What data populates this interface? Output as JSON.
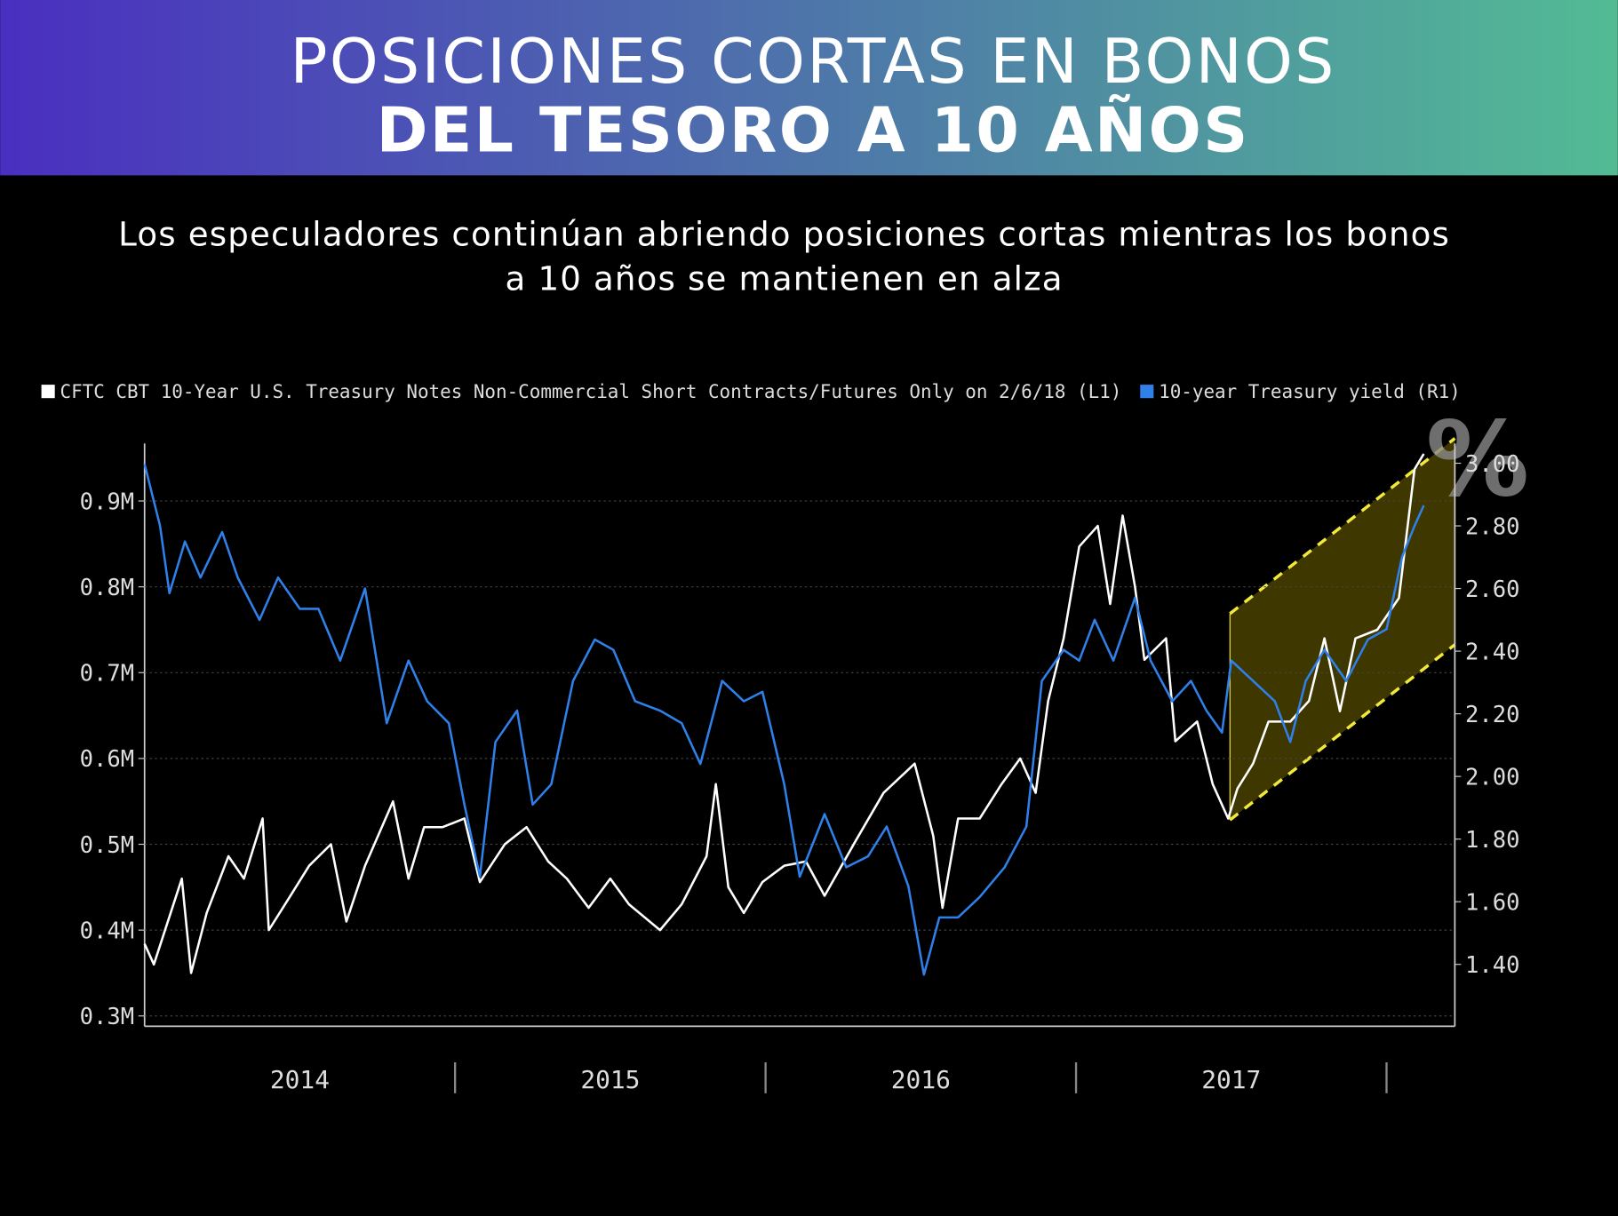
{
  "chart_data": {
    "type": "line",
    "title": [
      "POSICIONES CORTAS EN BONOS",
      "DEL TESORO A 10 AÑOS"
    ],
    "subtitle": [
      "Los especuladores continúan abriendo posiciones cortas mientras los bonos",
      "a 10 años se mantienen en alza"
    ],
    "annotation": "%",
    "xlim": [
      2014,
      2018.22
    ],
    "xticks": [
      {
        "value": 2014.5,
        "label": "2014"
      },
      {
        "value": 2015.5,
        "label": "2015"
      },
      {
        "value": 2016.5,
        "label": "2016"
      },
      {
        "value": 2017.5,
        "label": "2017"
      }
    ],
    "ylim": [
      288000,
      967000
    ],
    "yticks": [
      {
        "value": 300000,
        "label": "0.3M"
      },
      {
        "value": 400000,
        "label": "0.4M"
      },
      {
        "value": 500000,
        "label": "0.5M"
      },
      {
        "value": 600000,
        "label": "0.6M"
      },
      {
        "value": 700000,
        "label": "0.7M"
      },
      {
        "value": 800000,
        "label": "0.8M"
      },
      {
        "value": 900000,
        "label": "0.9M"
      }
    ],
    "y2lim": [
      1.2025,
      3.063
    ],
    "y2ticks": [
      {
        "value": 1.4,
        "label": "1.40"
      },
      {
        "value": 1.6,
        "label": "1.60"
      },
      {
        "value": 1.8,
        "label": "1.80"
      },
      {
        "value": 2.0,
        "label": "2.00"
      },
      {
        "value": 2.2,
        "label": "2.20"
      },
      {
        "value": 2.4,
        "label": "2.40"
      },
      {
        "value": 2.6,
        "label": "2.60"
      },
      {
        "value": 2.8,
        "label": "2.80"
      },
      {
        "value": 3.0,
        "label": "3.00"
      }
    ],
    "grid": true,
    "series": [
      {
        "name": "CFTC CBT 10-Year U.S. Treasury Notes Non-Commercial Short Contracts/Futures Only on 2/6/18 (L1)",
        "color": "#ffffff",
        "x": [
          2014.0,
          2014.03,
          2014.12,
          2014.15,
          2014.2,
          2014.27,
          2014.32,
          2014.38,
          2014.4,
          2014.47,
          2014.53,
          2014.6,
          2014.65,
          2014.71,
          2014.8,
          2014.85,
          2014.9,
          2014.96,
          2015.03,
          2015.08,
          2015.16,
          2015.23,
          2015.3,
          2015.36,
          2015.43,
          2015.5,
          2015.56,
          2015.66,
          2015.73,
          2015.81,
          2015.84,
          2015.88,
          2015.93,
          2015.99,
          2016.06,
          2016.13,
          2016.19,
          2016.29,
          2016.38,
          2016.48,
          2016.54,
          2016.57,
          2016.62,
          2016.69,
          2016.76,
          2016.82,
          2016.87,
          2016.91,
          2016.96,
          2017.01,
          2017.07,
          2017.11,
          2017.15,
          2017.19,
          2017.22,
          2017.29,
          2017.32,
          2017.39,
          2017.44,
          2017.49,
          2017.52,
          2017.57,
          2017.62,
          2017.69,
          2017.75,
          2017.8,
          2017.85,
          2017.9,
          2017.97,
          2018.04,
          2018.09,
          2018.12
        ],
        "values": [
          384000,
          360000,
          460000,
          350000,
          420000,
          486000,
          460000,
          530000,
          400000,
          440000,
          475000,
          500000,
          410000,
          475000,
          550000,
          460000,
          520000,
          520000,
          530000,
          456000,
          500000,
          520000,
          480000,
          460000,
          426000,
          460000,
          430000,
          400000,
          430000,
          486000,
          570000,
          450000,
          420000,
          456000,
          475000,
          480000,
          440000,
          504000,
          560000,
          594000,
          510000,
          426000,
          530000,
          530000,
          570000,
          600000,
          560000,
          667000,
          740000,
          847000,
          871000,
          780000,
          883000,
          800000,
          715000,
          740000,
          620000,
          643000,
          570000,
          530000,
          565000,
          594000,
          643000,
          643000,
          667000,
          740000,
          655000,
          740000,
          750000,
          787000,
          937000,
          955000
        ]
      },
      {
        "name": "10-year Treasury yield (R1)",
        "color": "#2f80e8",
        "axis": "y2",
        "x": [
          2014.0,
          2014.05,
          2014.08,
          2014.13,
          2014.18,
          2014.25,
          2014.3,
          2014.37,
          2014.43,
          2014.5,
          2014.56,
          2014.63,
          2014.71,
          2014.78,
          2014.85,
          2014.91,
          2014.98,
          2015.03,
          2015.08,
          2015.13,
          2015.2,
          2015.25,
          2015.31,
          2015.38,
          2015.45,
          2015.51,
          2015.58,
          2015.66,
          2015.73,
          2015.79,
          2015.86,
          2015.93,
          2015.99,
          2016.06,
          2016.11,
          2016.19,
          2016.26,
          2016.33,
          2016.39,
          2016.46,
          2016.51,
          2016.56,
          2016.62,
          2016.69,
          2016.77,
          2016.84,
          2016.89,
          2016.96,
          2017.01,
          2017.06,
          2017.12,
          2017.19,
          2017.24,
          2017.31,
          2017.37,
          2017.42,
          2017.47,
          2017.5,
          2017.57,
          2017.64,
          2017.69,
          2017.74,
          2017.8,
          2017.87,
          2017.94,
          2018.0,
          2018.05,
          2018.09,
          2018.12
        ],
        "values": [
          2.997,
          2.8,
          2.585,
          2.75,
          2.635,
          2.78,
          2.635,
          2.5,
          2.635,
          2.535,
          2.535,
          2.37,
          2.6,
          2.17,
          2.37,
          2.24,
          2.17,
          1.91,
          1.68,
          2.11,
          2.21,
          1.91,
          1.975,
          2.305,
          2.437,
          2.404,
          2.24,
          2.21,
          2.17,
          2.04,
          2.305,
          2.24,
          2.27,
          1.975,
          1.68,
          1.88,
          1.71,
          1.745,
          1.84,
          1.65,
          1.367,
          1.55,
          1.55,
          1.615,
          1.71,
          1.84,
          2.305,
          2.404,
          2.37,
          2.5,
          2.37,
          2.57,
          2.37,
          2.24,
          2.305,
          2.21,
          2.14,
          2.37,
          2.305,
          2.24,
          2.11,
          2.305,
          2.404,
          2.305,
          2.437,
          2.47,
          2.7,
          2.8,
          2.865
        ]
      }
    ]
  }
}
